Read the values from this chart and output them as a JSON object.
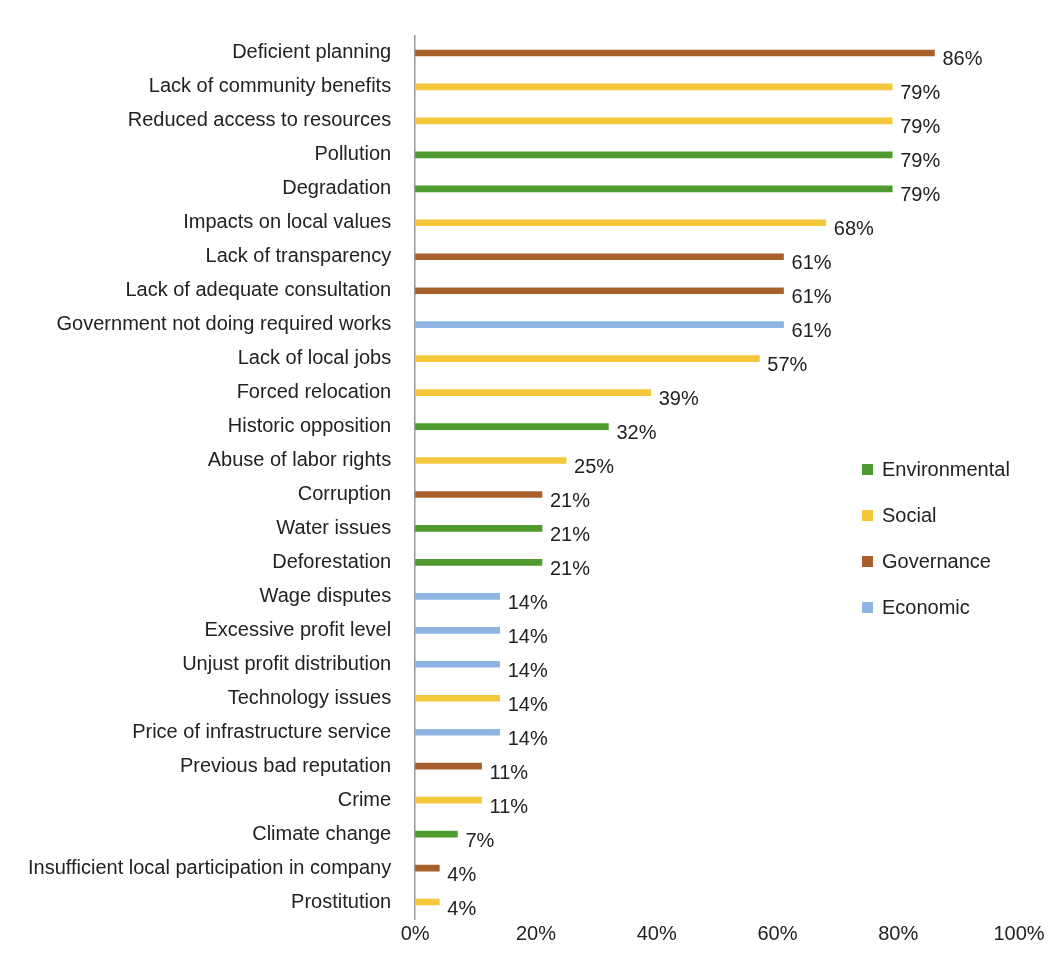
{
  "chart_data": {
    "type": "bar",
    "orientation": "horizontal",
    "legend": "right",
    "categories": [
      "Deficient planning",
      "Lack of community benefits",
      "Reduced access to resources",
      "Pollution",
      "Degradation",
      "Impacts on local values",
      "Lack of transparency",
      "Lack of adequate consultation",
      "Government not doing required works",
      "Lack of local jobs",
      "Forced relocation",
      "Historic opposition",
      "Abuse of labor rights",
      "Corruption",
      "Water issues",
      "Deforestation",
      "Wage disputes",
      "Excessive profit level",
      "Unjust profit distribution",
      "Technology issues",
      "Price of infrastructure service",
      "Previous bad reputation",
      "Crime",
      "Climate change",
      "Insufficient local participation in company",
      "Prostitution"
    ],
    "xlim": [
      0,
      100
    ],
    "xticks": [
      {
        "value": 0,
        "label": "0%"
      },
      {
        "value": 20,
        "label": "20%"
      },
      {
        "value": 40,
        "label": "40%"
      },
      {
        "value": 60,
        "label": "60%"
      },
      {
        "value": 80,
        "label": "80%"
      },
      {
        "value": 100,
        "label": "100%"
      }
    ],
    "series": [
      {
        "name": "Environmental",
        "color": "#4f9a2f",
        "values": [
          null,
          null,
          null,
          79,
          79,
          null,
          null,
          null,
          null,
          null,
          null,
          32,
          null,
          null,
          21,
          21,
          null,
          null,
          null,
          null,
          null,
          null,
          null,
          7,
          null,
          null
        ],
        "value_labels": [
          null,
          null,
          null,
          "79%",
          "79%",
          null,
          null,
          null,
          null,
          null,
          null,
          "32%",
          null,
          null,
          "21%",
          "21%",
          null,
          null,
          null,
          null,
          null,
          null,
          null,
          "7%",
          null,
          null
        ]
      },
      {
        "name": "Social",
        "color": "#f5c73a",
        "values": [
          null,
          79,
          79,
          null,
          null,
          68,
          null,
          null,
          null,
          57,
          39,
          null,
          25,
          null,
          null,
          null,
          null,
          null,
          null,
          14,
          null,
          null,
          11,
          null,
          null,
          4
        ],
        "value_labels": [
          null,
          "79%",
          "79%",
          null,
          null,
          "68%",
          null,
          null,
          null,
          "57%",
          "39%",
          null,
          "25%",
          null,
          null,
          null,
          null,
          null,
          null,
          "14%",
          null,
          null,
          "11%",
          null,
          null,
          "4%"
        ]
      },
      {
        "name": "Governance",
        "color": "#a8602b",
        "values": [
          86,
          null,
          null,
          null,
          null,
          null,
          61,
          61,
          null,
          null,
          null,
          null,
          null,
          21,
          null,
          null,
          null,
          null,
          null,
          null,
          null,
          11,
          null,
          null,
          4,
          null
        ],
        "value_labels": [
          "86%",
          null,
          null,
          null,
          null,
          null,
          "61%",
          "61%",
          null,
          null,
          null,
          null,
          null,
          "21%",
          null,
          null,
          null,
          null,
          null,
          null,
          null,
          "11%",
          null,
          null,
          "4%",
          null
        ]
      },
      {
        "name": "Economic",
        "color": "#8db4e3",
        "values": [
          null,
          null,
          null,
          null,
          null,
          null,
          null,
          null,
          61,
          null,
          null,
          null,
          null,
          null,
          null,
          null,
          14,
          14,
          14,
          null,
          14,
          null,
          null,
          null,
          null,
          null
        ],
        "value_labels": [
          null,
          null,
          null,
          null,
          null,
          null,
          null,
          null,
          "61%",
          null,
          null,
          null,
          null,
          null,
          null,
          null,
          "14%",
          "14%",
          "14%",
          null,
          "14%",
          null,
          null,
          null,
          null,
          null
        ]
      }
    ]
  }
}
